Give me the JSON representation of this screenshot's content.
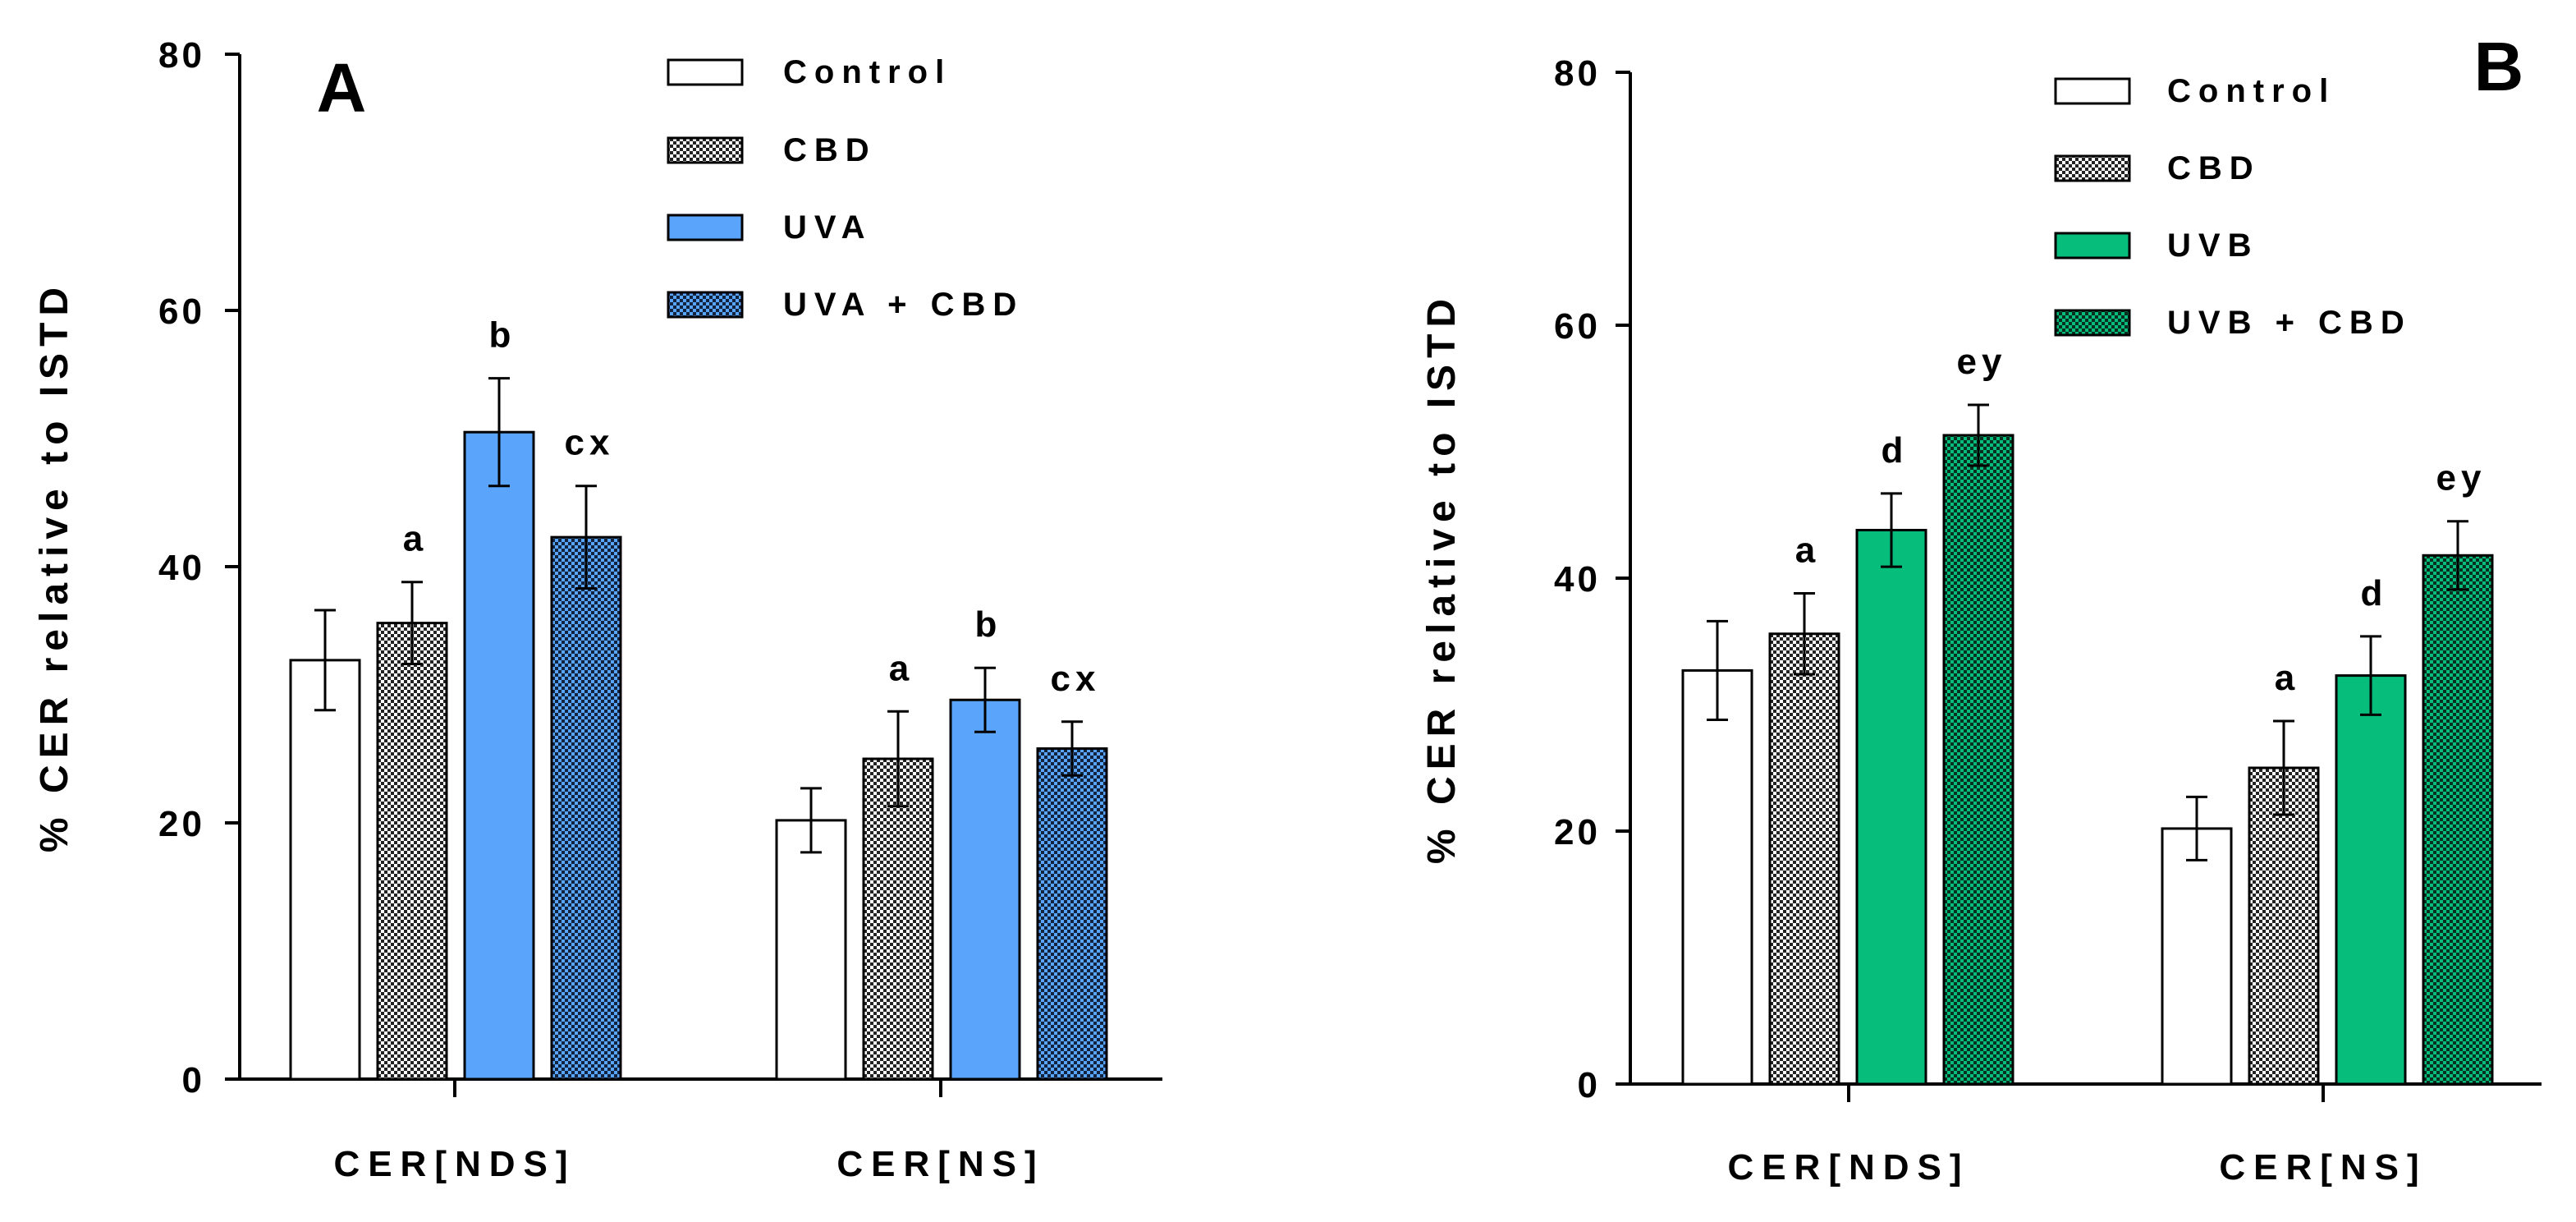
{
  "figure": {
    "panels": [
      "A",
      "B"
    ]
  },
  "chart_data": [
    {
      "panel_label": "A",
      "type": "bar",
      "ylabel": "% CER relative to ISTD",
      "xlabel": "",
      "ylim": [
        0,
        80
      ],
      "yticks": [
        0,
        20,
        40,
        60,
        80
      ],
      "grid": false,
      "legend_position": "top-center",
      "categories": [
        "CER[NDS]",
        "CER[NS]"
      ],
      "series": [
        {
          "name": "Control",
          "pattern": "solid",
          "color": "#ffffff",
          "values": [
            32.7,
            20.2
          ],
          "errors": [
            3.9,
            2.5
          ],
          "annotations": [
            "",
            ""
          ]
        },
        {
          "name": "CBD",
          "pattern": "checker",
          "color": "#ffffff",
          "values": [
            35.6,
            25.0
          ],
          "errors": [
            3.2,
            3.7
          ],
          "annotations": [
            "a",
            "a"
          ]
        },
        {
          "name": "UVA",
          "pattern": "solid",
          "color": "#5aa5fb",
          "values": [
            50.5,
            29.6
          ],
          "errors": [
            4.2,
            2.5
          ],
          "annotations": [
            "b",
            "b"
          ]
        },
        {
          "name": "UVA + CBD",
          "pattern": "checker",
          "color": "#5aa5fb",
          "values": [
            42.3,
            25.8
          ],
          "errors": [
            4.0,
            2.1
          ],
          "annotations": [
            "cx",
            "cx"
          ]
        }
      ]
    },
    {
      "panel_label": "B",
      "type": "bar",
      "ylabel": "% CER relative to ISTD",
      "xlabel": "",
      "ylim": [
        0,
        80
      ],
      "yticks": [
        0,
        20,
        40,
        60,
        80
      ],
      "grid": false,
      "legend_position": "top-right",
      "categories": [
        "CER[NDS]",
        "CER[NS]"
      ],
      "series": [
        {
          "name": "Control",
          "pattern": "solid",
          "color": "#ffffff",
          "values": [
            32.7,
            20.2
          ],
          "errors": [
            3.9,
            2.5
          ],
          "annotations": [
            "",
            ""
          ]
        },
        {
          "name": "CBD",
          "pattern": "checker",
          "color": "#ffffff",
          "values": [
            35.6,
            25.0
          ],
          "errors": [
            3.2,
            3.7
          ],
          "annotations": [
            "a",
            "a"
          ]
        },
        {
          "name": "UVB",
          "pattern": "solid",
          "color": "#06bd7c",
          "values": [
            43.8,
            32.3
          ],
          "errors": [
            2.9,
            3.1
          ],
          "annotations": [
            "d",
            "d"
          ]
        },
        {
          "name": "UVB + CBD",
          "pattern": "checker",
          "color": "#06bd7c",
          "values": [
            51.3,
            41.8
          ],
          "errors": [
            2.4,
            2.7
          ],
          "annotations": [
            "ey",
            "ey"
          ]
        }
      ]
    }
  ]
}
